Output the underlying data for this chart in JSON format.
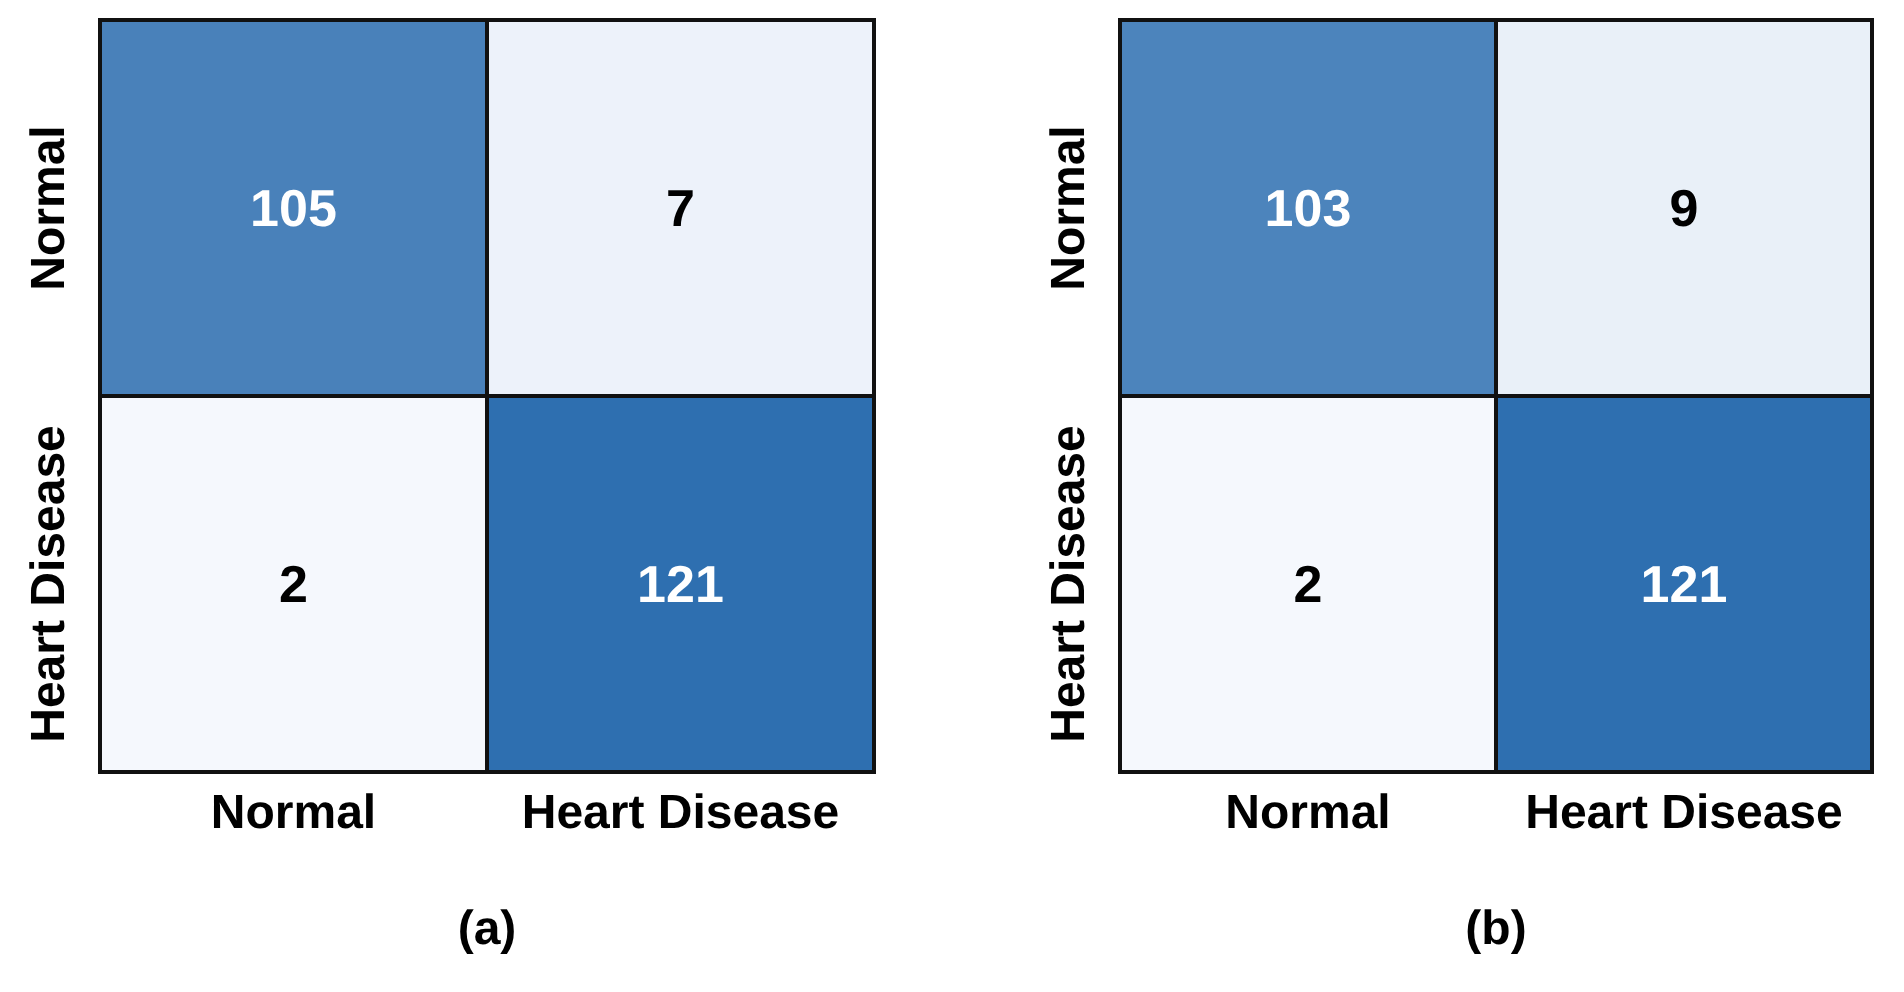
{
  "chart_data": [
    {
      "type": "heatmap",
      "title": "(a)",
      "categories": [
        "Normal",
        "Heart Disease"
      ],
      "y_categories": [
        "Normal",
        "Heart Disease"
      ],
      "cells": [
        [
          105,
          7
        ],
        [
          2,
          121
        ]
      ],
      "data_labels": true
    },
    {
      "type": "heatmap",
      "title": "(b)",
      "categories": [
        "Normal",
        "Heart Disease"
      ],
      "y_categories": [
        "Normal",
        "Heart Disease"
      ],
      "cells": [
        [
          103,
          9
        ],
        [
          2,
          121
        ]
      ],
      "data_labels": true
    }
  ]
}
